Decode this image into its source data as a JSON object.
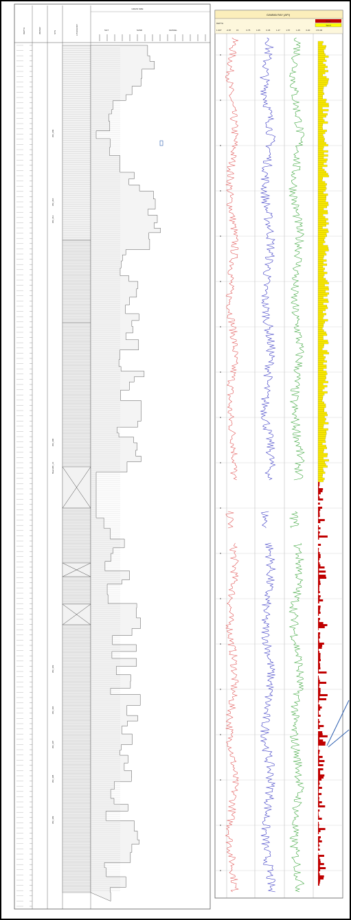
{
  "left_log": {
    "title": "",
    "columns": [
      {
        "name": "depth",
        "label": "DEPTH"
      },
      {
        "name": "water",
        "label": "WATER"
      },
      {
        "name": "sys",
        "label": "SYS"
      },
      {
        "name": "lithology",
        "label": "LITHOLOGY"
      }
    ],
    "grain_header": "GRAIN SIZE",
    "grain_labels": [
      "SILT",
      "SAND",
      "GRAVEL"
    ],
    "sample_labels": [
      "WZ_209",
      "WZ_210",
      "WZ_212",
      "WZ_300",
      "BearsRC_14",
      "WZ_303",
      "WZ_304",
      "WZ_307",
      "WZ_308",
      "WZ_309"
    ]
  },
  "right_log": {
    "title": "GAMMA RAY (API)",
    "depth_label": "DEPTH",
    "scale_labels": [
      "1.307",
      "-0.87",
      "15",
      "0.75",
      "1.05",
      "0.45",
      "1.47",
      "1.57",
      "1.25",
      "0.20",
      "170.00"
    ],
    "legend": [
      {
        "label": "Shale",
        "color": "#c00000"
      },
      {
        "label": "Sand",
        "color": "#ffff00"
      }
    ],
    "colors": {
      "curve1": "#e05050",
      "curve2": "#3030c0",
      "curve3": "#30a030",
      "shale_fill": "#c00000",
      "sand_fill": "#ffee00"
    }
  }
}
